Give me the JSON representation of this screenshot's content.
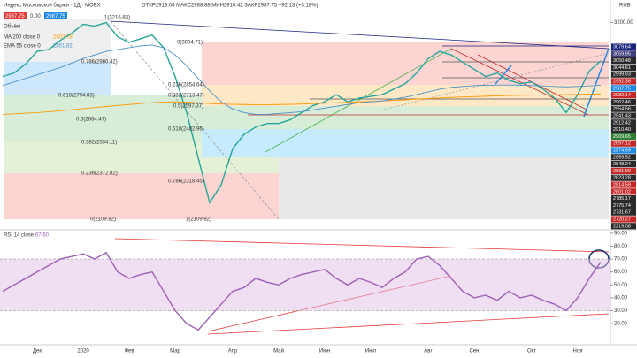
{
  "header": {
    "title": "Индекс Московской биржи · 1Д · MOEX",
    "ohlc": "ОТКР2919.08 МАКС2988.88 МИН2910.42 ЗАКР2987.75 +92.13 (+3.18%)",
    "bid": "2987.75",
    "spread": "0.00",
    "ask": "2987.75",
    "currency": "RUB"
  },
  "legend": {
    "volume": "Объём",
    "ma_name": "MA 200 close 0",
    "ma_value": "2803.78",
    "ema_name": "EMA 55 close 0",
    "ema_value": "2851.82",
    "rsi_name": "RSI 14 close",
    "rsi_value": "67.60"
  },
  "annotations": [
    "1(3216.83)",
    "0.786(2980.42)",
    "0.618(2794.83)",
    "0.5(2664.47)",
    "0.382(2534.11)",
    "0.236(2372.82)",
    "0(2109.82)",
    "0(3084.71)",
    "0.236(2854.64)",
    "0.382(2713.47)",
    "0.5(2597.37)",
    "0.618(2482.96)",
    "0.786(2318.45)",
    "1(2109.82)"
  ],
  "price_labels": [
    {
      "label": "3079.64",
      "color": "#1a237e"
    },
    {
      "label": "3059.95",
      "color": "#3f3f7f"
    },
    {
      "label": "3050.48",
      "color": "#2a2a2a"
    },
    {
      "label": "3044.61",
      "color": "#2a2a2a"
    },
    {
      "label": "2999.93",
      "color": "#2a2a2a"
    },
    {
      "label": "2992.38",
      "color": "#c62828"
    },
    {
      "label": "2987.75",
      "color": "#1e88e5"
    },
    {
      "label": "2982.14",
      "color": "#c62828"
    },
    {
      "label": "2962.46",
      "color": "#2a2a2a"
    },
    {
      "label": "2954.56",
      "color": "#2a2a2a"
    },
    {
      "label": "2941.43",
      "color": "#2a2a2a"
    },
    {
      "label": "2912.42",
      "color": "#2a2a2a"
    },
    {
      "label": "2910.40",
      "color": "#2a2a2a"
    },
    {
      "label": "2909.65",
      "color": "#2e7d32"
    },
    {
      "label": "2897.12",
      "color": "#c62828"
    },
    {
      "label": "2874.99",
      "color": "#1e88e5"
    },
    {
      "label": "2859.52",
      "color": "#2a2a2a"
    },
    {
      "label": "2848.24",
      "color": "#2a2a2a"
    },
    {
      "label": "2831.99",
      "color": "#c62828"
    },
    {
      "label": "2823.28",
      "color": "#2a2a2a"
    },
    {
      "label": "2814.59",
      "color": "#c62828"
    },
    {
      "label": "2801.02",
      "color": "#c62828"
    },
    {
      "label": "2785.17",
      "color": "#2a2a2a"
    },
    {
      "label": "2775.74",
      "color": "#2a2a2a"
    },
    {
      "label": "2731.67",
      "color": "#2a2a2a"
    },
    {
      "label": "2720.27",
      "color": "#c62828"
    },
    {
      "label": "2219.08",
      "color": "#2a2a2a"
    }
  ],
  "chart_data": [
    {
      "type": "line",
      "categories": [
        null,
        null,
        null,
        "Дек",
        null,
        null,
        null,
        "2020",
        null,
        null,
        null,
        "Фев",
        null,
        null,
        null,
        "Мар",
        null,
        null,
        null,
        null,
        "Апр",
        null,
        null,
        null,
        "Май",
        null,
        null,
        null,
        "Июн",
        null,
        null,
        null,
        "Июл",
        null,
        null,
        null,
        null,
        "Авг",
        null,
        null,
        null,
        "Сен",
        null,
        null,
        null,
        null,
        "Окт",
        null,
        null,
        null,
        "Ноя",
        null,
        null
      ],
      "ylim": [
        2060,
        3256
      ],
      "yticks": [
        {
          "value": 3200,
          "label": "3200.00"
        }
      ],
      "series": [
        {
          "name": "close",
          "color": "#26a69a",
          "values": [
            2900,
            2920,
            2970,
            3040,
            3050,
            3100,
            3140,
            3190,
            3180,
            3200,
            3120,
            3090,
            3110,
            3130,
            3060,
            2900,
            2700,
            2450,
            2200,
            2300,
            2500,
            2580,
            2620,
            2640,
            2640,
            2660,
            2700,
            2740,
            2760,
            2800,
            2760,
            2780,
            2790,
            2800,
            2830,
            2860,
            2920,
            3000,
            3040,
            3020,
            2980,
            2940,
            2900,
            2920,
            2880,
            2860,
            2870,
            2830,
            2780,
            2700,
            2800,
            2930,
            2987.75
          ]
        },
        {
          "name": "MA 200",
          "color": "#ff9800",
          "values": [
            2690,
            2693,
            2697,
            2700,
            2705,
            2710,
            2716,
            2722,
            2728,
            2734,
            2740,
            2745,
            2750,
            2755,
            2758,
            2760,
            2758,
            2755,
            2750,
            2748,
            2746,
            2745,
            2744,
            2744,
            2745,
            2746,
            2748,
            2750,
            2752,
            2755,
            2757,
            2760,
            2762,
            2765,
            2768,
            2771,
            2775,
            2778,
            2781,
            2784,
            2787,
            2789,
            2791,
            2793,
            2795,
            2796,
            2797,
            2798,
            2799,
            2800,
            2801,
            2802,
            2803.78
          ]
        },
        {
          "name": "EMA 55",
          "color": "#4a90c8",
          "values": [
            2850,
            2870,
            2890,
            2910,
            2930,
            2950,
            2975,
            3000,
            3020,
            3040,
            3050,
            3060,
            3070,
            3075,
            3060,
            3020,
            2960,
            2890,
            2820,
            2760,
            2720,
            2700,
            2690,
            2690,
            2695,
            2700,
            2705,
            2715,
            2725,
            2735,
            2745,
            2755,
            2760,
            2765,
            2775,
            2785,
            2800,
            2815,
            2830,
            2840,
            2845,
            2850,
            2852,
            2853,
            2853,
            2852,
            2850,
            2848,
            2845,
            2843,
            2845,
            2848,
            2851.82
          ]
        }
      ]
    },
    {
      "type": "line",
      "ylim": [
        5,
        94
      ],
      "yticks": [
        {
          "value": 20,
          "label": "20.00"
        },
        {
          "value": 30,
          "label": "30.00"
        },
        {
          "value": 40,
          "label": "40.00"
        },
        {
          "value": 50,
          "label": "50.00"
        },
        {
          "value": 60,
          "label": "60.00"
        },
        {
          "value": 70,
          "label": "70.00"
        },
        {
          "value": 80,
          "label": "80.00"
        },
        {
          "value": 90,
          "label": "90.00"
        }
      ],
      "band": [
        30,
        70
      ],
      "series": [
        {
          "name": "RSI",
          "color": "#9c5fb5",
          "values": [
            45,
            50,
            55,
            60,
            65,
            70,
            72,
            74,
            70,
            75,
            60,
            55,
            58,
            60,
            45,
            30,
            20,
            15,
            25,
            35,
            45,
            48,
            55,
            52,
            50,
            55,
            58,
            60,
            62,
            55,
            50,
            55,
            52,
            48,
            55,
            60,
            70,
            72,
            65,
            55,
            45,
            40,
            42,
            38,
            45,
            40,
            42,
            38,
            35,
            30,
            40,
            55,
            67.6
          ]
        }
      ]
    }
  ]
}
